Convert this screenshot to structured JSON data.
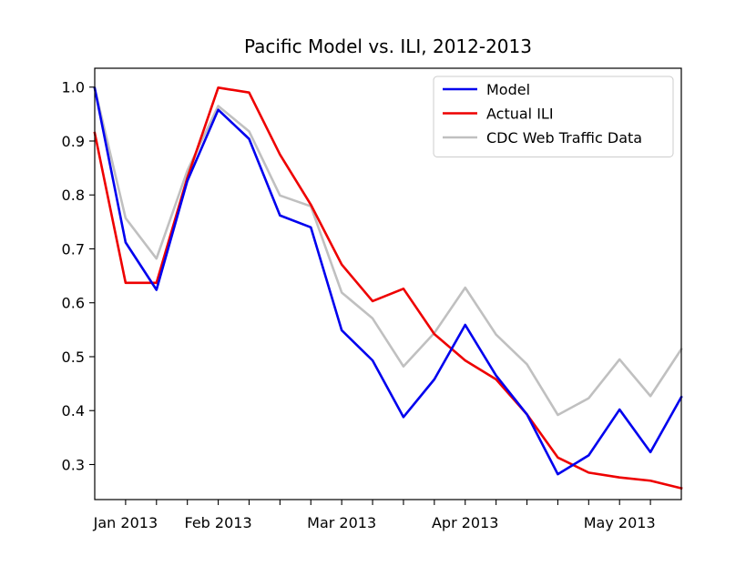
{
  "chart_data": {
    "type": "line",
    "title": "Pacific Model vs. ILI, 2012-2013",
    "xlabel": "",
    "ylabel": "",
    "x": [
      0,
      1,
      2,
      3,
      4,
      5,
      6,
      7,
      8,
      9,
      10,
      11,
      12,
      13,
      14,
      15,
      16,
      17,
      18,
      19
    ],
    "x_ticks": [
      {
        "x": 1,
        "label": "Jan 2013"
      },
      {
        "x": 2,
        "label": ""
      },
      {
        "x": 3,
        "label": ""
      },
      {
        "x": 4,
        "label": "Feb 2013"
      },
      {
        "x": 5,
        "label": ""
      },
      {
        "x": 6,
        "label": ""
      },
      {
        "x": 7,
        "label": ""
      },
      {
        "x": 8,
        "label": "Mar 2013"
      },
      {
        "x": 9,
        "label": ""
      },
      {
        "x": 10,
        "label": ""
      },
      {
        "x": 11,
        "label": ""
      },
      {
        "x": 12,
        "label": "Apr 2013"
      },
      {
        "x": 13,
        "label": ""
      },
      {
        "x": 14,
        "label": ""
      },
      {
        "x": 15,
        "label": ""
      },
      {
        "x": 16,
        "label": ""
      },
      {
        "x": 17,
        "label": "May 2013"
      },
      {
        "x": 18,
        "label": ""
      }
    ],
    "xlim": [
      0,
      19
    ],
    "ylim": [
      0.235,
      1.035
    ],
    "y_ticks": [
      0.3,
      0.4,
      0.5,
      0.6,
      0.7,
      0.8,
      0.9,
      1.0
    ],
    "y_tick_labels": [
      "0.3",
      "0.4",
      "0.5",
      "0.6",
      "0.7",
      "0.8",
      "0.9",
      "1.0"
    ],
    "grid": false,
    "legend_position": "top-right",
    "series": [
      {
        "name": "Model",
        "color": "#0000ee",
        "values": [
          0.998,
          0.712,
          0.624,
          0.826,
          0.958,
          0.904,
          0.762,
          0.74,
          0.549,
          0.493,
          0.388,
          0.458,
          0.559,
          0.465,
          0.393,
          0.282,
          0.317,
          0.402,
          0.323,
          0.425
        ]
      },
      {
        "name": "Actual ILI",
        "color": "#ee0000",
        "values": [
          0.915,
          0.637,
          0.637,
          0.832,
          0.999,
          0.99,
          0.875,
          0.782,
          0.671,
          0.603,
          0.626,
          0.542,
          0.493,
          0.458,
          0.393,
          0.313,
          0.285,
          0.276,
          0.27,
          0.256
        ]
      },
      {
        "name": "CDC Web Traffic Data",
        "color": "#c0c0c0",
        "values": [
          0.998,
          0.757,
          0.682,
          0.845,
          0.965,
          0.918,
          0.799,
          0.779,
          0.619,
          0.571,
          0.482,
          0.544,
          0.628,
          0.541,
          0.486,
          0.392,
          0.423,
          0.495,
          0.427,
          0.514
        ]
      }
    ]
  }
}
